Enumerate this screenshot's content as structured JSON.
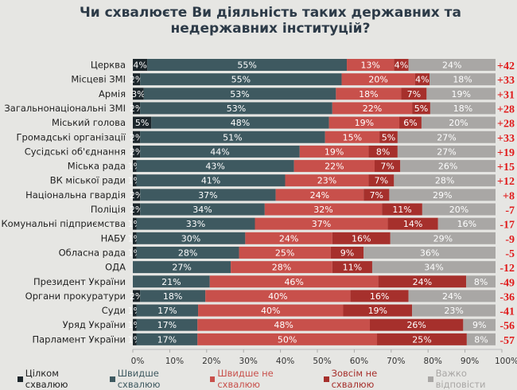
{
  "chart_data": {
    "type": "bar",
    "orientation": "horizontal-stacked-100",
    "title": "Чи схвалюєте Ви діяльність таких державних та недержавних інституцій?",
    "categories": [
      "Церква",
      "Місцеві ЗМІ",
      "Армія",
      "Загальнонаціональні ЗМІ",
      "Міський голова",
      "Громадські організації",
      "Сусідські об'єднання",
      "Міська рада",
      "ВК міської ради",
      "Національна гвардія",
      "Поліція",
      "Комунальні підприємства",
      "НАБУ",
      "Обласна рада",
      "ОДА",
      "Президент України",
      "Органи прокуратури",
      "Суди",
      "Уряд України",
      "Парламент України"
    ],
    "series": [
      {
        "name": "Цілком схвалюю",
        "color": "#1c262b",
        "values": [
          4,
          2,
          3,
          2,
          5,
          2,
          2,
          1,
          1,
          2,
          2,
          1,
          1,
          1,
          0,
          0,
          2,
          1,
          1,
          1
        ]
      },
      {
        "name": "Швидше схвалюю",
        "color": "#3e5960",
        "values": [
          55,
          55,
          53,
          53,
          48,
          51,
          44,
          43,
          41,
          37,
          34,
          33,
          30,
          28,
          27,
          21,
          18,
          17,
          17,
          17
        ]
      },
      {
        "name": "Швидше не схвалюю",
        "color": "#c8504b",
        "values": [
          13,
          20,
          18,
          22,
          19,
          15,
          19,
          22,
          23,
          24,
          32,
          37,
          24,
          25,
          28,
          46,
          40,
          40,
          48,
          50
        ]
      },
      {
        "name": "Зовсім не схвалюю",
        "color": "#a6302c",
        "values": [
          4,
          4,
          7,
          5,
          6,
          5,
          8,
          7,
          7,
          7,
          11,
          14,
          16,
          9,
          11,
          24,
          16,
          19,
          26,
          25
        ]
      },
      {
        "name": "Важко відповісти",
        "color": "#a9a7a5",
        "values": [
          24,
          18,
          19,
          18,
          20,
          27,
          27,
          26,
          28,
          29,
          20,
          16,
          29,
          36,
          34,
          8,
          24,
          23,
          9,
          8
        ]
      }
    ],
    "net_balance": [
      "+42",
      "+33",
      "+31",
      "+28",
      "+28",
      "+33",
      "+19",
      "+15",
      "+12",
      "+8",
      "-7",
      "-17",
      "-9",
      "-5",
      "-12",
      "-49",
      "-36",
      "-41",
      "-56",
      "-57"
    ],
    "x_ticks": [
      "0%",
      "10%",
      "20%",
      "30%",
      "40%",
      "50%",
      "60%",
      "70%",
      "80%",
      "90%",
      "100%"
    ],
    "xlim": [
      0,
      100
    ],
    "legend_position": "bottom",
    "grid": false
  }
}
